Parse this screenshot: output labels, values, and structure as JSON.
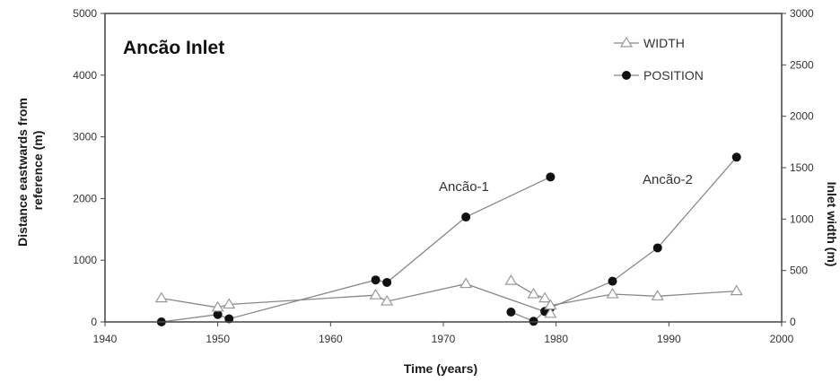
{
  "chart_data": {
    "type": "line",
    "title": "Ancão Inlet",
    "xlabel": "Time (years)",
    "ylabel_lines": [
      "Distance eastwards from",
      "reference (m)"
    ],
    "y2label": "Inlet width (m)",
    "xlim": [
      1940,
      2000
    ],
    "ylim": [
      0,
      5000
    ],
    "y2lim": [
      0,
      3000
    ],
    "x_ticks": [
      "1940",
      "1950",
      "1960",
      "1970",
      "1980",
      "1990",
      "2000"
    ],
    "y_ticks": [
      "0",
      "1000",
      "2000",
      "3000",
      "4000",
      "5000"
    ],
    "y2_ticks": [
      "0",
      "500",
      "1000",
      "1500",
      "2000",
      "2500",
      "3000"
    ],
    "legend": {
      "position": "top-right",
      "width_label": "WIDTH",
      "position_label": "POSITION"
    },
    "annotations": [
      {
        "text": "Ancão-1",
        "x": 1972.5,
        "y": 2260
      },
      {
        "text": "Ancão-2",
        "x": 1991.5,
        "y": 2380
      }
    ],
    "colors": {
      "line": "#888888",
      "marker_filled": "#111111",
      "marker_hollow": "#999999",
      "frame": "#444444"
    },
    "series": [
      {
        "name": "POSITION",
        "axis": "left",
        "marker": "circle",
        "segments": [
          [
            [
              1945,
              0
            ],
            [
              1950,
              120
            ],
            [
              1951,
              50
            ],
            [
              1964,
              680
            ],
            [
              1965,
              640
            ],
            [
              1972,
              1700
            ],
            [
              1979.5,
              2350
            ]
          ],
          [
            [
              1976,
              160
            ],
            [
              1978,
              10
            ],
            [
              1979,
              170
            ],
            [
              1979.5,
              230
            ],
            [
              1985,
              660
            ],
            [
              1989,
              1200
            ],
            [
              1996,
              2670
            ]
          ]
        ]
      },
      {
        "name": "WIDTH",
        "axis": "right",
        "marker": "triangle",
        "segments": [
          [
            [
              1945,
              230
            ],
            [
              1950,
              140
            ],
            [
              1951,
              170
            ],
            [
              1964,
              260
            ],
            [
              1965,
              200
            ],
            [
              1972,
              370
            ],
            [
              1979.5,
              80
            ]
          ],
          [
            [
              1976,
              400
            ],
            [
              1978,
              270
            ],
            [
              1979,
              230
            ],
            [
              1979.5,
              160
            ],
            [
              1985,
              270
            ],
            [
              1989,
              250
            ],
            [
              1996,
              300
            ]
          ]
        ]
      }
    ]
  }
}
